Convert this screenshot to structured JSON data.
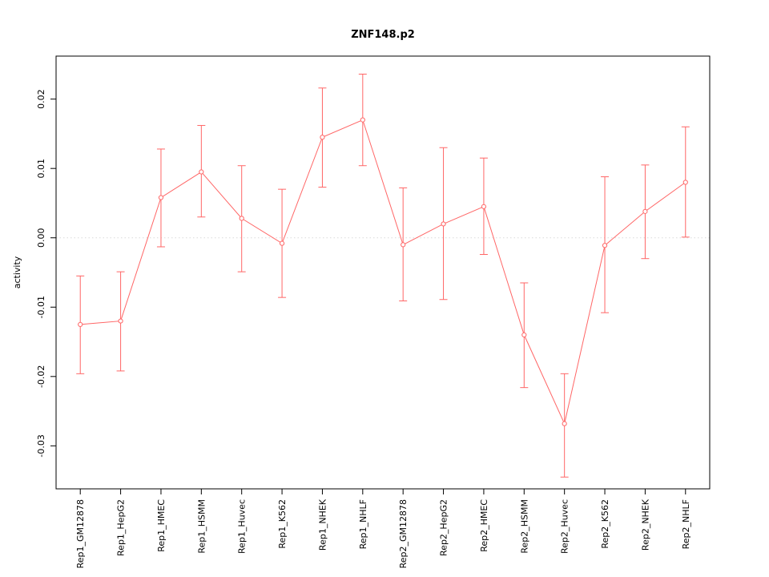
{
  "chart_data": {
    "type": "line",
    "title": "ZNF148.p2",
    "xlabel": "",
    "ylabel": "activity",
    "categories": [
      "Rep1_GM12878",
      "Rep1_HepG2",
      "Rep1_HMEC",
      "Rep1_HSMM",
      "Rep1_Huvec",
      "Rep1_K562",
      "Rep1_NHEK",
      "Rep1_NHLF",
      "Rep2_GM12878",
      "Rep2_HepG2",
      "Rep2_HMEC",
      "Rep2_HSMM",
      "Rep2_Huvec",
      "Rep2_K562",
      "Rep2_NHEK",
      "Rep2_NHLF"
    ],
    "series": [
      {
        "name": "activity",
        "values": [
          -0.0125,
          -0.012,
          0.0058,
          0.0095,
          0.0028,
          -0.0008,
          0.0145,
          0.017,
          -0.001,
          0.002,
          0.0045,
          -0.014,
          -0.0268,
          -0.0011,
          0.0038,
          0.008
        ]
      }
    ],
    "error_low": [
      -0.0196,
      -0.0192,
      -0.0013,
      0.003,
      -0.0049,
      -0.0086,
      0.0073,
      0.0104,
      -0.0091,
      -0.0089,
      -0.0024,
      -0.0216,
      -0.0345,
      -0.0108,
      -0.003,
      0.0001
    ],
    "error_high": [
      -0.0055,
      -0.0049,
      0.0128,
      0.0162,
      0.0104,
      0.007,
      0.0216,
      0.0236,
      0.0072,
      0.013,
      0.0115,
      -0.0065,
      -0.0196,
      0.0088,
      0.0105,
      0.016
    ],
    "ylim": [
      -0.0362,
      0.0262
    ],
    "yticks": [
      -0.03,
      -0.02,
      -0.01,
      0.0,
      0.01,
      0.02
    ],
    "ytick_labels": [
      "-0.03",
      "-0.02",
      "-0.01",
      "0.00",
      "0.01",
      "0.02"
    ],
    "grid": "dotted horizontal line at y = 0 only",
    "legend": "none",
    "line_color": "#FF6666",
    "zero_line_color": "#D9D9D9",
    "box_color": "#000000"
  }
}
